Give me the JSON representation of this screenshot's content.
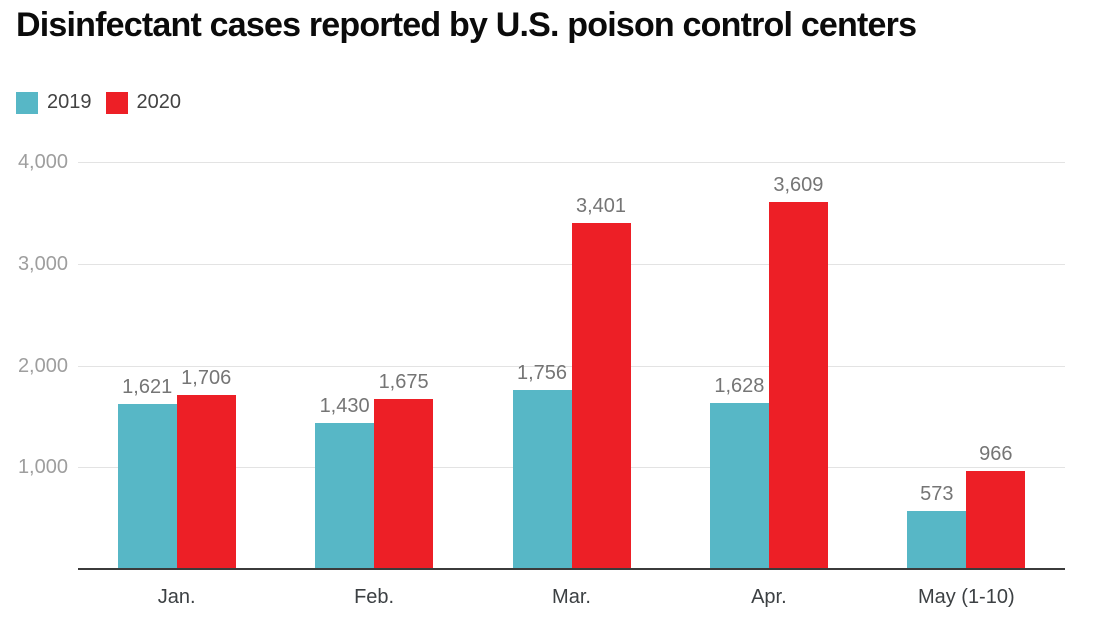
{
  "chart_data": {
    "type": "bar",
    "title": "Disinfectant cases reported by U.S. poison control centers",
    "categories": [
      "Jan.",
      "Feb.",
      "Mar.",
      "Apr.",
      "May (1-10)"
    ],
    "series": [
      {
        "name": "2019",
        "color": "#57b7c6",
        "values": [
          1621,
          1430,
          1756,
          1628,
          573
        ]
      },
      {
        "name": "2020",
        "color": "#ed1f26",
        "values": [
          1706,
          1675,
          3401,
          3609,
          966
        ]
      }
    ],
    "ylim": [
      0,
      4000
    ],
    "yticks": [
      1000,
      2000,
      3000,
      4000
    ],
    "ytick_labels": [
      "1,000",
      "2,000",
      "3,000",
      "4,000"
    ],
    "value_labels": [
      [
        "1,621",
        "1,430",
        "1,756",
        "1,628",
        "573"
      ],
      [
        "1,706",
        "1,675",
        "3,401",
        "3,609",
        "966"
      ]
    ],
    "grid": true,
    "legend_position": "top-left",
    "xlabel": "",
    "ylabel": ""
  },
  "colors": {
    "grid": "#e3e3e3",
    "axis": "#3b3b3b",
    "ytick_text": "#9e9e9e",
    "value_text": "#757575",
    "xtick_text": "#3c4043"
  }
}
